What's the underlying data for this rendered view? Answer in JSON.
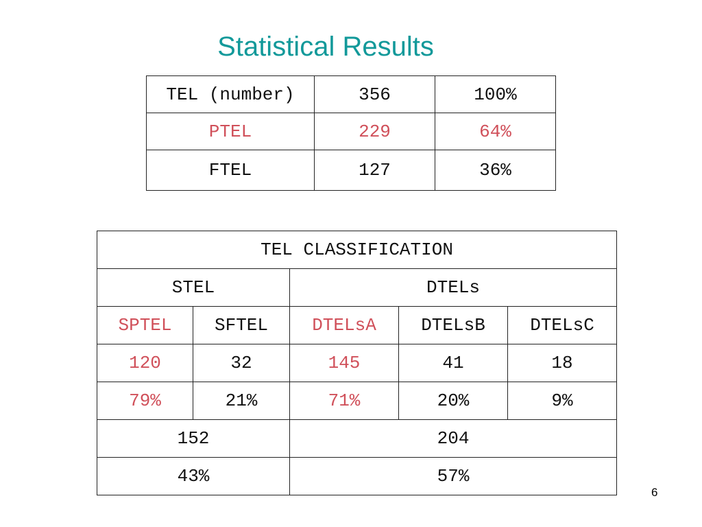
{
  "header": {
    "title": "Statistical Results"
  },
  "table1": {
    "rows": [
      [
        "TEL (number)",
        "356",
        "100%"
      ],
      [
        "PTEL",
        "229",
        "64%"
      ],
      [
        "FTEL",
        "127",
        "36%"
      ]
    ]
  },
  "table2": {
    "rows": [
      [
        "TEL CLASSIFICATION"
      ],
      [
        "STEL",
        "DTELs"
      ],
      [
        "SPTEL",
        "SFTEL",
        "DTELsA",
        "DTELsB",
        "DTELsC"
      ],
      [
        "120",
        "32",
        "145",
        "41",
        "18"
      ],
      [
        "79%",
        "21%",
        "71%",
        "20%",
        "9%"
      ],
      [
        "152",
        "204"
      ],
      [
        "43%",
        "57%"
      ]
    ]
  },
  "footer": {
    "page_number": "6"
  }
}
